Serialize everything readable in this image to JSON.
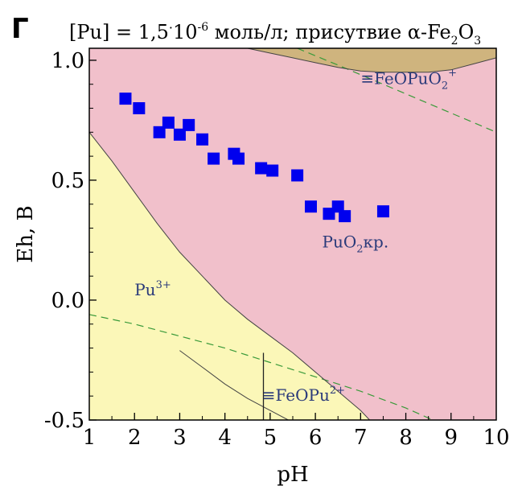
{
  "panel_label": "Г",
  "title": {
    "prefix": "[Pu] = 1,5",
    "dot": "·",
    "base": "10",
    "exponent": "-6",
    "suffix": " моль/л; присутвие α-Fe",
    "sub1": "2",
    "o": "O",
    "sub2": "3"
  },
  "region_labels": {
    "feopuo2": {
      "text": "≡FeOPuO",
      "sub": "2",
      "sup": "+"
    },
    "puo2": {
      "text": "PuO",
      "sub": "2",
      "suffix": "кр."
    },
    "pu3": {
      "text": "Pu",
      "sup": "3+"
    },
    "feopu": {
      "text": "≡FeOPu",
      "sup": "2+"
    }
  },
  "colors": {
    "pink_region": "#f1c0cb",
    "yellow_region": "#fbf7b8",
    "brown_region": "#cfb47e",
    "markers": "#0000ee",
    "dashed_line": "#3a9a3a",
    "region_label": "#2a3a7a",
    "axis": "#000000"
  },
  "chart_data": {
    "type": "scatter",
    "title": "[Pu] = 1,5·10-6 моль/л; присутвие α-Fe2O3",
    "xlabel": "pH",
    "ylabel": "Eh, B",
    "xlim": [
      1,
      10
    ],
    "ylim": [
      -0.5,
      1.05
    ],
    "x_ticks": [
      1,
      2,
      3,
      4,
      5,
      6,
      7,
      8,
      9,
      10
    ],
    "x_tick_labels": [
      "1",
      "2",
      "3",
      "4",
      "5",
      "6",
      "7",
      "8",
      "9",
      "10"
    ],
    "y_ticks": [
      1.0,
      0.5,
      0.0,
      -0.5
    ],
    "y_tick_labels": [
      "1.0",
      "0.5",
      "0.0",
      "-0.5"
    ],
    "grid": false,
    "points": [
      {
        "x": 1.8,
        "y": 0.84
      },
      {
        "x": 2.1,
        "y": 0.8
      },
      {
        "x": 2.55,
        "y": 0.7
      },
      {
        "x": 2.75,
        "y": 0.74
      },
      {
        "x": 3.0,
        "y": 0.69
      },
      {
        "x": 3.2,
        "y": 0.73
      },
      {
        "x": 3.5,
        "y": 0.67
      },
      {
        "x": 3.75,
        "y": 0.59
      },
      {
        "x": 4.2,
        "y": 0.61
      },
      {
        "x": 4.3,
        "y": 0.59
      },
      {
        "x": 4.8,
        "y": 0.55
      },
      {
        "x": 5.05,
        "y": 0.54
      },
      {
        "x": 5.6,
        "y": 0.52
      },
      {
        "x": 5.9,
        "y": 0.39
      },
      {
        "x": 6.3,
        "y": 0.36
      },
      {
        "x": 6.5,
        "y": 0.39
      },
      {
        "x": 6.65,
        "y": 0.35
      },
      {
        "x": 7.5,
        "y": 0.37
      }
    ],
    "boundaries": {
      "pu3_puo2": [
        [
          1.0,
          0.7
        ],
        [
          1.5,
          0.58
        ],
        [
          2.0,
          0.45
        ],
        [
          2.5,
          0.32
        ],
        [
          3.0,
          0.2
        ],
        [
          3.5,
          0.1
        ],
        [
          4.0,
          0.0
        ],
        [
          4.5,
          -0.08
        ],
        [
          5.0,
          -0.15
        ],
        [
          5.5,
          -0.22
        ],
        [
          6.0,
          -0.3
        ],
        [
          6.5,
          -0.38
        ],
        [
          7.0,
          -0.46
        ],
        [
          7.2,
          -0.5
        ]
      ],
      "pu3_feopu": [
        [
          3.0,
          -0.21
        ],
        [
          3.5,
          -0.28
        ],
        [
          4.0,
          -0.35
        ],
        [
          4.5,
          -0.41
        ],
        [
          5.0,
          -0.46
        ],
        [
          5.4,
          -0.5
        ]
      ],
      "feopu_vertical": [
        [
          4.85,
          -0.22
        ],
        [
          4.85,
          -0.5
        ]
      ],
      "puo2_feopuo2": [
        [
          4.5,
          1.05
        ],
        [
          5.0,
          1.03
        ],
        [
          5.5,
          1.01
        ],
        [
          6.0,
          0.99
        ],
        [
          6.5,
          0.97
        ],
        [
          7.0,
          0.955
        ],
        [
          7.5,
          0.95
        ],
        [
          8.0,
          0.95
        ],
        [
          8.5,
          0.95
        ],
        [
          9.0,
          0.96
        ],
        [
          9.5,
          0.985
        ],
        [
          10.0,
          1.01
        ]
      ],
      "dashed_upper": [
        [
          5.6,
          1.05
        ],
        [
          6.5,
          0.98
        ],
        [
          7.5,
          0.9
        ],
        [
          8.5,
          0.82
        ],
        [
          9.5,
          0.74
        ],
        [
          10.0,
          0.7
        ]
      ],
      "dashed_lower": [
        [
          1.0,
          -0.06
        ],
        [
          2.0,
          -0.1
        ],
        [
          3.0,
          -0.15
        ],
        [
          4.0,
          -0.2
        ],
        [
          5.0,
          -0.26
        ],
        [
          6.0,
          -0.32
        ],
        [
          7.0,
          -0.38
        ],
        [
          8.0,
          -0.45
        ],
        [
          8.6,
          -0.5
        ]
      ]
    }
  }
}
